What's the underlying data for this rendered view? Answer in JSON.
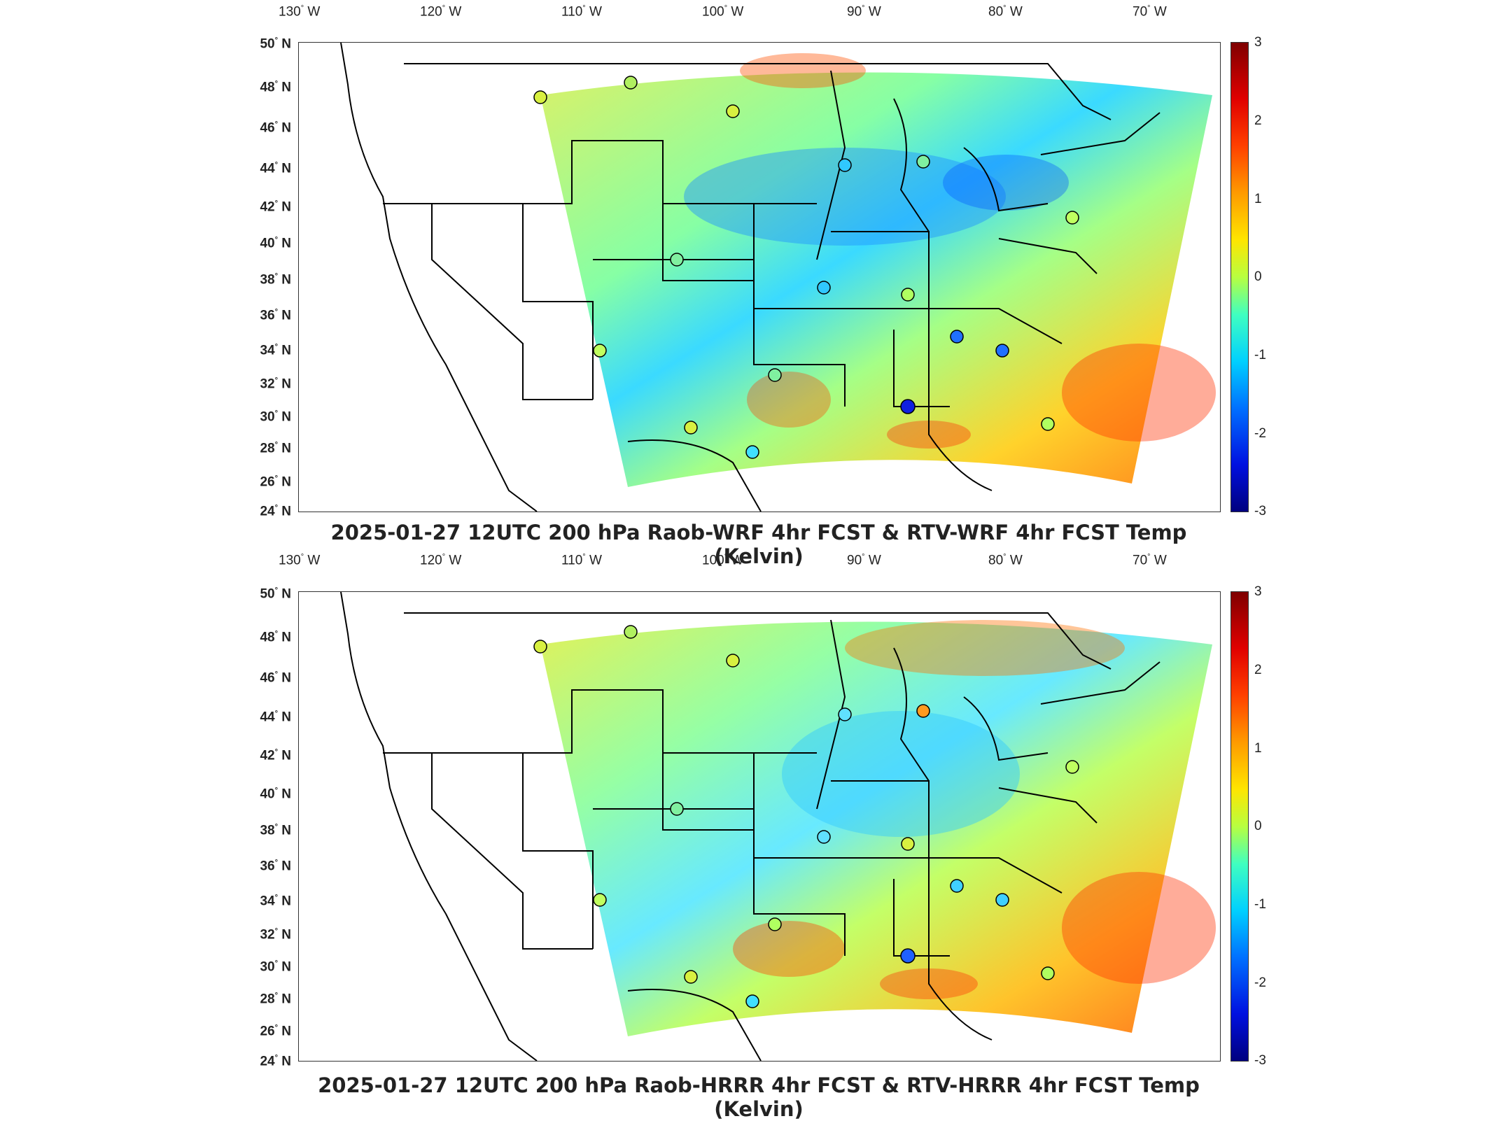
{
  "panels": [
    {
      "title": "2025-01-27 12UTC 200 hPa Raob-WRF 4hr FCST & RTV-WRF 4hr FCST Temp (Kelvin)"
    },
    {
      "title": "2025-01-27 12UTC 200 hPa Raob-HRRR 4hr FCST & RTV-HRRR 4hr FCST Temp (Kelvin)"
    }
  ],
  "longitude_labels": [
    "130",
    "120",
    "110",
    "100",
    "90",
    "80",
    "70"
  ],
  "longitude_hemisphere": "W",
  "latitude_labels": [
    "50",
    "48",
    "46",
    "44",
    "42",
    "40",
    "38",
    "36",
    "34",
    "32",
    "30",
    "28",
    "26",
    "24"
  ],
  "latitude_hemisphere": "N",
  "degree_symbol": "°",
  "colorbar": {
    "ticks": [
      "3",
      "2",
      "1",
      "0",
      "-1",
      "-2",
      "-3"
    ],
    "colormap": "jet",
    "colors": [
      "#7f0000",
      "#ff4000",
      "#ffe500",
      "#b8ff40",
      "#00d0ff",
      "#0010e0",
      "#00007f"
    ]
  }
}
